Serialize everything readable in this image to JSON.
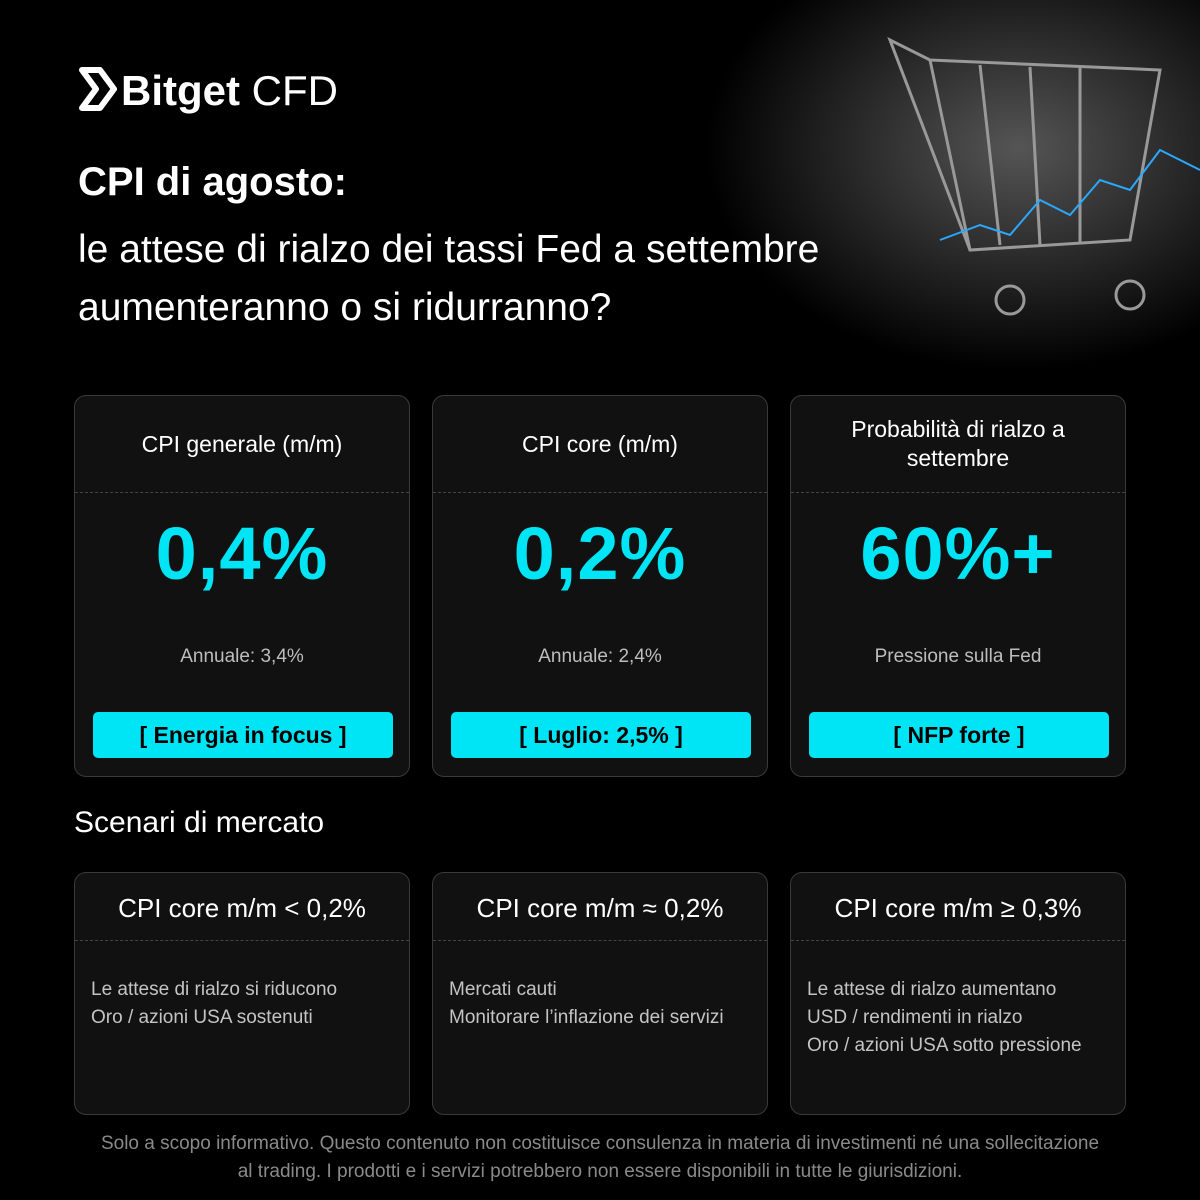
{
  "brand": {
    "name": "Bitget",
    "suffix": "CFD"
  },
  "title": "CPI di agosto:",
  "subtitle_lines": [
    "le attese di rialzo dei tassi Fed a settembre",
    "aumenteranno o si ridurranno?"
  ],
  "cards": [
    {
      "title": "CPI generale (m/m)",
      "value": "0,4%",
      "note": "Annuale: 3,4%",
      "tag": "[ Energia in focus ]"
    },
    {
      "title": "CPI core (m/m)",
      "value": "0,2%",
      "note": "Annuale: 2,4%",
      "tag": "[ Luglio: 2,5% ]"
    },
    {
      "title": "Probabilità di rialzo a settembre",
      "value": "60%+",
      "note": "Pressione sulla Fed",
      "tag": "[ NFP forte ]"
    }
  ],
  "scenarios_title": "Scenari di mercato",
  "scenarios": [
    {
      "condition": "CPI core m/m < 0,2%",
      "lines": [
        "Le attese di rialzo si riducono",
        "Oro / azioni USA sostenuti"
      ]
    },
    {
      "condition": "CPI core m/m ≈ 0,2%",
      "lines": [
        "Mercati cauti",
        "Monitorare l’inflazione dei servizi"
      ]
    },
    {
      "condition": "CPI core m/m ≥ 0,3%",
      "lines": [
        "Le attese di rialzo aumentano",
        "USD / rendimenti in rialzo",
        "Oro / azioni USA sotto pressione"
      ]
    }
  ],
  "disclaimer_lines": [
    "Solo a scopo informativo. Questo contenuto non costituisce consulenza in materia di investimenti né una sollecitazione",
    "al trading. I prodotti e i servizi potrebbero non essere disponibili in tutte le giurisdizioni."
  ]
}
